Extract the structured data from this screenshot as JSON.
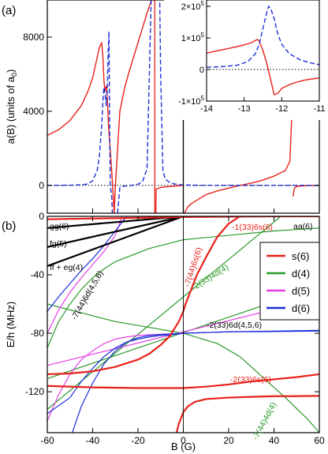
{
  "chart_data": [
    {
      "type": "line",
      "panel_label": "(a)",
      "xlim": [
        -60,
        60
      ],
      "ylim": [
        -1500,
        10000
      ],
      "yticks": [
        0,
        4000,
        8000
      ],
      "ylabel": "a(B) (units of a",
      "ylabel_sub": "0",
      "ylabel_close": ")",
      "zero_line": "dotted",
      "series": [
        {
          "color": "#e8211a",
          "style": "solid",
          "x": [
            -60,
            -55,
            -50,
            -45,
            -42,
            -40,
            -38,
            -37,
            -36,
            -35.5,
            -35,
            -34.5,
            -34,
            -33.5,
            -33,
            -32,
            -31.5,
            -31,
            -30.5,
            -30,
            -28,
            -26,
            -24,
            -22,
            -20,
            -18,
            -16,
            -14,
            -12.8
          ],
          "y": [
            2700,
            3000,
            3500,
            4300,
            5100,
            5800,
            6900,
            7450,
            7700,
            7000,
            5600,
            5100,
            5350,
            4600,
            3200,
            1500,
            600,
            -400,
            -1500,
            -100,
            4000,
            5200,
            6100,
            6900,
            7700,
            8500,
            9300,
            10000,
            12000
          ]
        },
        {
          "color": "#e8211a",
          "style": "solid",
          "x": [
            -12.2,
            -12,
            -10,
            -8,
            -6,
            -4,
            -2,
            -0.5
          ],
          "y": [
            -3000,
            -200,
            -120,
            -80,
            -60,
            -40,
            -20,
            -5
          ]
        },
        {
          "color": "#e8211a",
          "style": "solid",
          "x": [
            0.5,
            2,
            4,
            6,
            8,
            10,
            15,
            20,
            25,
            30,
            35,
            40,
            45,
            47,
            47.8
          ],
          "y": [
            -1500,
            -1150,
            -950,
            -800,
            -650,
            -500,
            -300,
            -150,
            0,
            120,
            280,
            500,
            800,
            1300,
            3600
          ]
        },
        {
          "color": "#e8211a",
          "style": "solid",
          "x": [
            48.4,
            49,
            50,
            52,
            55,
            60
          ],
          "y": [
            -600,
            -150,
            -60,
            -30,
            -10,
            -3
          ]
        },
        {
          "color": "#1c2fd9",
          "style": "dashed",
          "x": [
            -60,
            -55,
            -50,
            -45,
            -42,
            -40,
            -38,
            -37,
            -36,
            -35.5,
            -35,
            -34.5,
            -34,
            -33.5,
            -33.2,
            -32.8,
            -32.5,
            -32.2,
            -32,
            -31.6,
            -31.3
          ],
          "y": [
            0,
            5,
            10,
            30,
            80,
            250,
            800,
            1600,
            3200,
            4500,
            5300,
            4900,
            4300,
            5200,
            7000,
            8300,
            3000,
            0,
            -200,
            -600,
            -1500
          ]
        },
        {
          "color": "#1c2fd9",
          "style": "dashed",
          "x": [
            -29,
            -28,
            -26,
            -24,
            -22,
            -20,
            -18,
            -16,
            -14
          ],
          "y": [
            -1500,
            -120,
            -40,
            -15,
            20,
            60,
            200,
            900,
            11000
          ]
        },
        {
          "color": "#1c2fd9",
          "style": "dashed",
          "x": [
            -10.5,
            -10,
            -9,
            -8,
            -6,
            -4,
            -2,
            0,
            5,
            10,
            20,
            30,
            40,
            50,
            60
          ],
          "y": [
            11000,
            6000,
            800,
            350,
            150,
            80,
            40,
            20,
            8,
            4,
            2,
            1,
            0,
            0,
            0
          ]
        }
      ],
      "verticals": [
        {
          "x": -12.6,
          "color": "#e8211a"
        },
        {
          "x": 0,
          "color": "#000000"
        }
      ],
      "inset": {
        "xlim": [
          -14,
          -11
        ],
        "ylim": [
          -100000,
          220000
        ],
        "xticks": [
          -14,
          -13,
          -12,
          -11
        ],
        "yticks": [
          {
            "value": -100000,
            "mant": "-1",
            "exp": "5"
          },
          {
            "value": 0,
            "mant": "0",
            "exp": ""
          },
          {
            "value": 100000,
            "mant": "1",
            "exp": "5"
          },
          {
            "value": 200000,
            "mant": "2",
            "exp": "5"
          }
        ],
        "series": [
          {
            "color": "#e8211a",
            "style": "solid",
            "x": [
              -14,
              -13.8,
              -13.6,
              -13.4,
              -13.2,
              -13,
              -12.8,
              -12.7,
              -12.65,
              -12.6,
              -12.5,
              -12.4,
              -12.3,
              -12.2,
              -12.1,
              -12,
              -11.8,
              -11.6,
              -11.4,
              -11.2,
              -11
            ],
            "y": [
              52000,
              57000,
              62000,
              67000,
              72000,
              78000,
              85000,
              92000,
              95000,
              90000,
              60000,
              20000,
              -30000,
              -80000,
              -75000,
              -60000,
              -48000,
              -40000,
              -34000,
              -30000,
              -27000
            ]
          },
          {
            "color": "#1c2fd9",
            "style": "dashed",
            "x": [
              -14,
              -13.6,
              -13.2,
              -12.9,
              -12.7,
              -12.6,
              -12.5,
              -12.4,
              -12.35,
              -12.3,
              -12.2,
              -12.1,
              -12,
              -11.8,
              -11.5,
              -11.2,
              -11
            ],
            "y": [
              7000,
              9000,
              13000,
              25000,
              50000,
              80000,
              130000,
              180000,
              200000,
              195000,
              160000,
              110000,
              80000,
              50000,
              30000,
              20000,
              15000
            ]
          }
        ]
      }
    },
    {
      "type": "line",
      "panel_label": "(b)",
      "xlim": [
        -60,
        60
      ],
      "ylim": [
        -148,
        0
      ],
      "xticks": [
        -60,
        -40,
        -20,
        0,
        20,
        40,
        60
      ],
      "yticks": [
        0,
        -40,
        -80,
        -120
      ],
      "xlabel": "B (G)",
      "ylabel": "E/h (MHz)",
      "legend": {
        "placement": "right",
        "entries": [
          {
            "name": "s(6)",
            "color": "#e8211a"
          },
          {
            "name": "d(4)",
            "color": "#2a9a2a"
          },
          {
            "name": "d(5)",
            "color": "#e43ee4"
          },
          {
            "name": "d(6)",
            "color": "#1c2fd9"
          }
        ]
      },
      "annotations": [
        {
          "text": "gg(6)",
          "color": "#000000"
        },
        {
          "text": "fg(5)",
          "color": "#000000"
        },
        {
          "text": "ff + eg(4)",
          "color": "#000000"
        },
        {
          "text": "aa(6)",
          "color": "#000000"
        },
        {
          "text": "-7(44)6d(4,5,6)",
          "color": "#000000"
        },
        {
          "text": "-7(44)6s(6)",
          "color": "#e8211a"
        },
        {
          "text": "-1(33)6s(6)",
          "color": "#e8211a"
        },
        {
          "text": "-2(33)4d(4)",
          "color": "#2a9a2a"
        },
        {
          "text": "-2(33)6d(4,5,6)",
          "color": "#000000"
        },
        {
          "text": "-2(33)6s(6)",
          "color": "#e8211a"
        },
        {
          "text": "-7(44)4d(4)",
          "color": "#2a9a2a"
        }
      ],
      "series": [
        {
          "family": "threshold",
          "color": "#000000",
          "width": 2.2,
          "x": [
            -60,
            0
          ],
          "y": [
            -8,
            0
          ]
        },
        {
          "family": "threshold",
          "color": "#000000",
          "width": 2.2,
          "x": [
            -60,
            0
          ],
          "y": [
            -21,
            0
          ]
        },
        {
          "family": "threshold",
          "color": "#000000",
          "width": 2.2,
          "x": [
            -60,
            0
          ],
          "y": [
            -34,
            0
          ]
        },
        {
          "family": "threshold",
          "color": "#000000",
          "width": 1.2,
          "x": [
            0,
            60
          ],
          "y": [
            0,
            0
          ]
        },
        {
          "family": "s(6)",
          "color": "#e8211a",
          "width": 2.2,
          "x": [
            -60,
            -50,
            -40,
            -30,
            -20,
            -15,
            -10,
            -6,
            -4,
            -2,
            0,
            1,
            3,
            6,
            10,
            15,
            20,
            25
          ],
          "y": [
            -108,
            -107.5,
            -106,
            -103,
            -98,
            -94,
            -88,
            -82,
            -77,
            -72,
            -65,
            -60,
            -52,
            -40,
            -28,
            -14,
            -5,
            0
          ]
        },
        {
          "family": "s(6)",
          "color": "#e8211a",
          "width": 2.2,
          "x": [
            -60,
            -40,
            -20,
            0,
            20,
            40,
            60
          ],
          "y": [
            -2,
            -1.5,
            -1,
            -0.5,
            -0.2,
            0,
            0
          ]
        },
        {
          "family": "s(6)",
          "color": "#e8211a",
          "width": 2.2,
          "x": [
            -60,
            -40,
            -20,
            0,
            10,
            20,
            30,
            40,
            50,
            60
          ],
          "y": [
            -116,
            -117,
            -117.5,
            -117.5,
            -116.5,
            -115,
            -113,
            -111.5,
            -110,
            -108
          ]
        },
        {
          "family": "s(6)",
          "color": "#e8211a",
          "width": 2.2,
          "x": [
            -3,
            -2,
            -1,
            0,
            2,
            5,
            10,
            20,
            30,
            40,
            50,
            60
          ],
          "y": [
            -148,
            -142,
            -138,
            -134,
            -130,
            -127,
            -125,
            -124,
            -123.5,
            -123,
            -123,
            -122.8
          ]
        },
        {
          "family": "d(4)",
          "color": "#2a9a2a",
          "width": 1.2,
          "x": [
            -60,
            60
          ],
          "y": [
            -111,
            -48
          ]
        },
        {
          "family": "d(4)",
          "color": "#2a9a2a",
          "width": 1.2,
          "x": [
            -60,
            43
          ],
          "y": [
            -132,
            0
          ]
        },
        {
          "family": "d(4)",
          "color": "#2a9a2a",
          "width": 1.2,
          "x": [
            -60,
            -55,
            -50,
            -45,
            -40,
            -35,
            -30,
            -25,
            -20,
            -15,
            -10,
            -5,
            0,
            20,
            40,
            60
          ],
          "y": [
            -90,
            -72,
            -60,
            -50,
            -42,
            -36,
            -31,
            -28,
            -25,
            -22,
            -20,
            -18,
            -16,
            -13,
            -10,
            -8
          ]
        },
        {
          "family": "d(4)",
          "color": "#2a9a2a",
          "width": 1.2,
          "x": [
            -60,
            -45,
            -30,
            -15,
            0,
            15,
            25,
            35,
            45,
            55,
            60
          ],
          "y": [
            -60,
            -66,
            -72,
            -76,
            -80,
            -87,
            -96,
            -110,
            -124,
            -139,
            -148
          ]
        },
        {
          "family": "d(5)",
          "color": "#e43ee4",
          "width": 1.2,
          "x": [
            -60,
            60
          ],
          "y": [
            -102,
            -56
          ]
        },
        {
          "family": "d(5)",
          "color": "#e43ee4",
          "width": 1.2,
          "x": [
            -60,
            -55,
            -50,
            -45,
            -40,
            -35,
            -30,
            -25,
            -20,
            -15,
            -10,
            -5,
            0
          ],
          "y": [
            -140,
            -122,
            -108,
            -98,
            -92,
            -87,
            -84,
            -82.5,
            -81.5,
            -81,
            -80.7,
            -80.4,
            -80
          ]
        },
        {
          "family": "d(5)",
          "color": "#e43ee4",
          "width": 1.2,
          "x": [
            -60,
            -55,
            -50,
            -45,
            -40,
            -35,
            -30,
            -27
          ],
          "y": [
            -80,
            -64,
            -52,
            -42,
            -33,
            -24,
            -13,
            0
          ]
        },
        {
          "family": "d(6)",
          "color": "#1c2fd9",
          "width": 1.2,
          "x": [
            -60,
            -50,
            -45,
            -40,
            -35,
            -30,
            -25,
            -20,
            -15,
            -10,
            -5,
            0,
            20,
            40,
            60
          ],
          "y": [
            -135,
            -124,
            -113,
            -104,
            -96,
            -90,
            -86,
            -84,
            -82.5,
            -81.5,
            -81,
            -80,
            -79,
            -78.5,
            -78
          ]
        },
        {
          "family": "d(6)",
          "color": "#1c2fd9",
          "width": 1.2,
          "x": [
            -60,
            -55,
            -50,
            -45,
            -40,
            -35,
            -30,
            -25
          ],
          "y": [
            -65,
            -55,
            -46,
            -37,
            -29,
            -20,
            -10,
            0
          ]
        },
        {
          "family": "d(6)",
          "color": "#1c2fd9",
          "width": 1.2,
          "x": [
            -49,
            -45,
            -40,
            -35,
            -30,
            -25,
            -20,
            -15,
            -10,
            -5,
            0,
            10,
            20,
            40,
            60
          ],
          "y": [
            -148,
            -130,
            -114,
            -101,
            -92,
            -86,
            -83,
            -81.5,
            -80.8,
            -80.4,
            -80,
            -79.5,
            -79,
            -78.8,
            -78.5
          ]
        }
      ]
    }
  ]
}
